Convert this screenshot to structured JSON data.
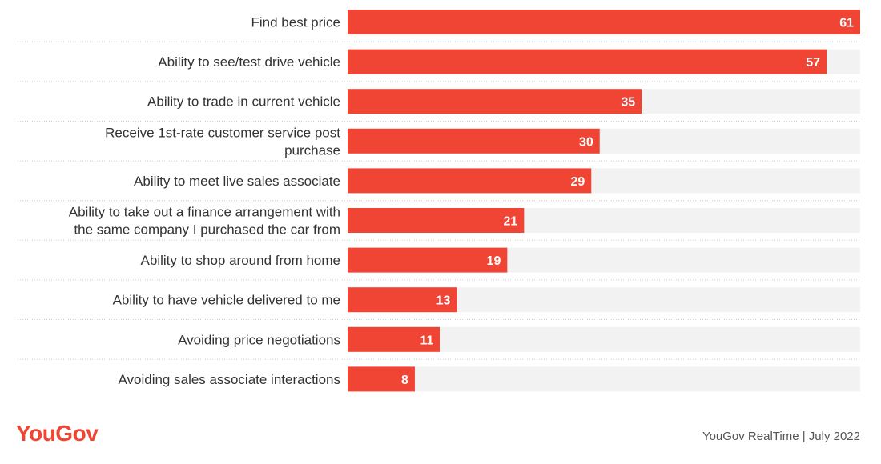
{
  "colors": {
    "bar": "#f04534",
    "track": "#f2f2f2",
    "brand": "#f04534"
  },
  "chart_data": {
    "type": "bar",
    "orientation": "horizontal",
    "categories": [
      "Find best price",
      "Ability to see/test drive vehicle",
      "Ability to trade in current vehicle",
      "Receive 1st-rate customer service post purchase",
      "Ability to meet live sales associate",
      "Ability to take out a finance arrangement with the same company I purchased the car from",
      "Ability to shop around from home",
      "Ability to have vehicle delivered to me",
      "Avoiding price negotiations",
      "Avoiding sales associate interactions"
    ],
    "category_lines": [
      [
        "Find best price"
      ],
      [
        "Ability to see/test drive vehicle"
      ],
      [
        "Ability to trade in current vehicle"
      ],
      [
        "Receive 1st-rate customer service post",
        "purchase"
      ],
      [
        "Ability to meet live sales associate"
      ],
      [
        "Ability to take out a finance arrangement with",
        "the same company I purchased the car from"
      ],
      [
        "Ability to shop around from home"
      ],
      [
        "Ability to have vehicle delivered to me"
      ],
      [
        "Avoiding price negotiations"
      ],
      [
        "Avoiding sales associate interactions"
      ]
    ],
    "values": [
      61,
      57,
      35,
      30,
      29,
      21,
      19,
      13,
      11,
      8
    ],
    "value_labels": [
      "61",
      "57",
      "35",
      "30",
      "29",
      "21",
      "19",
      "13",
      "11",
      "8"
    ],
    "xlim": [
      0,
      61
    ],
    "grid": false
  },
  "footer": {
    "logo": "YouGov",
    "source": "YouGov RealTime | July 2022"
  }
}
